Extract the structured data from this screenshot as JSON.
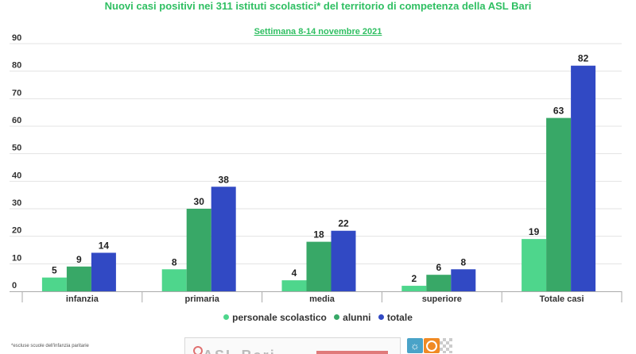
{
  "chart_data": {
    "type": "bar",
    "title": "Nuovi casi positivi nei 311 istituti scolastici* del territorio di competenza della ASL Bari",
    "subtitle": "Settimana 8-14 novembre 2021",
    "categories": [
      "infanzia",
      "primaria",
      "media",
      "superiore",
      "Totale casi"
    ],
    "series": [
      {
        "name": "personale scolastico",
        "color": "#4ed68c",
        "values": [
          5,
          8,
          4,
          2,
          19
        ]
      },
      {
        "name": "alunni",
        "color": "#38a867",
        "values": [
          9,
          30,
          18,
          6,
          63
        ]
      },
      {
        "name": "totale",
        "color": "#3149c4",
        "values": [
          14,
          38,
          22,
          8,
          82
        ]
      }
    ],
    "yticks": [
      0,
      10,
      20,
      30,
      40,
      50,
      60,
      70,
      80,
      90
    ],
    "ylim": [
      0,
      90
    ],
    "grid": true,
    "legend": "bottom-center",
    "xlabel": "",
    "ylabel": ""
  },
  "footnote": "*escluse scuole dell'infanzia paritarie",
  "logo_text": "ASL Bari"
}
